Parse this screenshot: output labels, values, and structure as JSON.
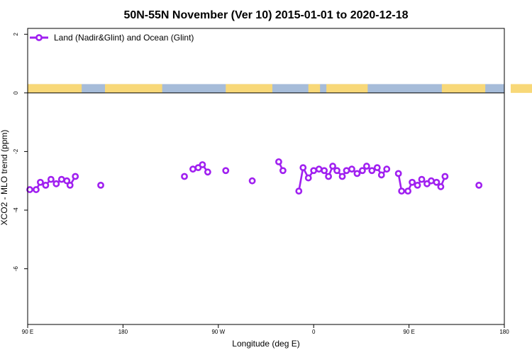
{
  "chart_data": {
    "type": "line",
    "title": "50N-55N November (Ver 10)   2015-01-01 to 2020-12-18",
    "xlabel": "Longitude (deg E)",
    "ylabel": "XCO2 - MLO trend (ppm)",
    "x_ticks": [
      {
        "value": 90,
        "label": "90 E"
      },
      {
        "value": 180,
        "label": "180"
      },
      {
        "value": 270,
        "label": "90 W"
      },
      {
        "value": 360,
        "label": "0"
      },
      {
        "value": 450,
        "label": "90 E"
      },
      {
        "value": 540,
        "label": "180"
      }
    ],
    "y_ticks": [
      {
        "value": 2,
        "label": "2"
      },
      {
        "value": 0,
        "label": "0"
      },
      {
        "value": -2,
        "label": "-2"
      },
      {
        "value": -4,
        "label": "-4"
      },
      {
        "value": -6,
        "label": "-6"
      }
    ],
    "xlim": [
      90,
      540
    ],
    "ylim": [
      -7.9,
      2.2
    ],
    "legend": {
      "position": "top-left",
      "label": "Land (Nadir&Glint) and Ocean (Glint)"
    },
    "colors": {
      "series": "#a020f0",
      "land": "#f8d878",
      "ocean": "#a6bcd9"
    },
    "land_segments": [
      [
        90,
        141
      ],
      [
        163,
        217
      ],
      [
        277,
        321
      ],
      [
        355,
        366
      ],
      [
        372,
        411
      ],
      [
        481,
        522
      ],
      [
        546,
        569
      ]
    ],
    "land_strip_ylim": [
      0,
      0.3
    ],
    "series": [
      {
        "name": "Land (Nadir&Glint) and Ocean (Glint)",
        "segments": [
          [
            [
              92,
              -3.3
            ],
            [
              98,
              -3.3
            ],
            [
              102,
              -3.05
            ],
            [
              107,
              -3.15
            ],
            [
              112,
              -2.95
            ],
            [
              117,
              -3.1
            ],
            [
              122,
              -2.95
            ],
            [
              127,
              -3.0
            ],
            [
              130,
              -3.15
            ],
            [
              135,
              -2.85
            ]
          ],
          [
            [
              159,
              -3.15
            ]
          ],
          [
            [
              238,
              -2.85
            ]
          ],
          [
            [
              246,
              -2.6
            ],
            [
              251,
              -2.55
            ],
            [
              255,
              -2.45
            ],
            [
              260,
              -2.7
            ]
          ],
          [
            [
              277,
              -2.65
            ]
          ],
          [
            [
              302,
              -3.0
            ]
          ],
          [
            [
              327,
              -2.35
            ],
            [
              331,
              -2.65
            ]
          ],
          [
            [
              346,
              -3.35
            ],
            [
              350,
              -2.55
            ],
            [
              355,
              -2.9
            ],
            [
              360,
              -2.65
            ],
            [
              365,
              -2.6
            ],
            [
              370,
              -2.65
            ],
            [
              374,
              -2.85
            ],
            [
              378,
              -2.5
            ],
            [
              382,
              -2.65
            ],
            [
              387,
              -2.85
            ],
            [
              391,
              -2.65
            ],
            [
              396,
              -2.6
            ],
            [
              401,
              -2.75
            ],
            [
              406,
              -2.65
            ],
            [
              410,
              -2.5
            ],
            [
              415,
              -2.65
            ],
            [
              420,
              -2.55
            ],
            [
              424,
              -2.8
            ],
            [
              429,
              -2.6
            ]
          ],
          [
            [
              440,
              -2.75
            ],
            [
              443,
              -3.35
            ],
            [
              449,
              -3.35
            ],
            [
              453,
              -3.05
            ],
            [
              458,
              -3.15
            ],
            [
              462,
              -2.95
            ],
            [
              467,
              -3.1
            ],
            [
              471,
              -3.0
            ],
            [
              476,
              -3.05
            ],
            [
              480,
              -3.2
            ],
            [
              484,
              -2.85
            ]
          ],
          [
            [
              516,
              -3.15
            ]
          ]
        ]
      }
    ]
  }
}
